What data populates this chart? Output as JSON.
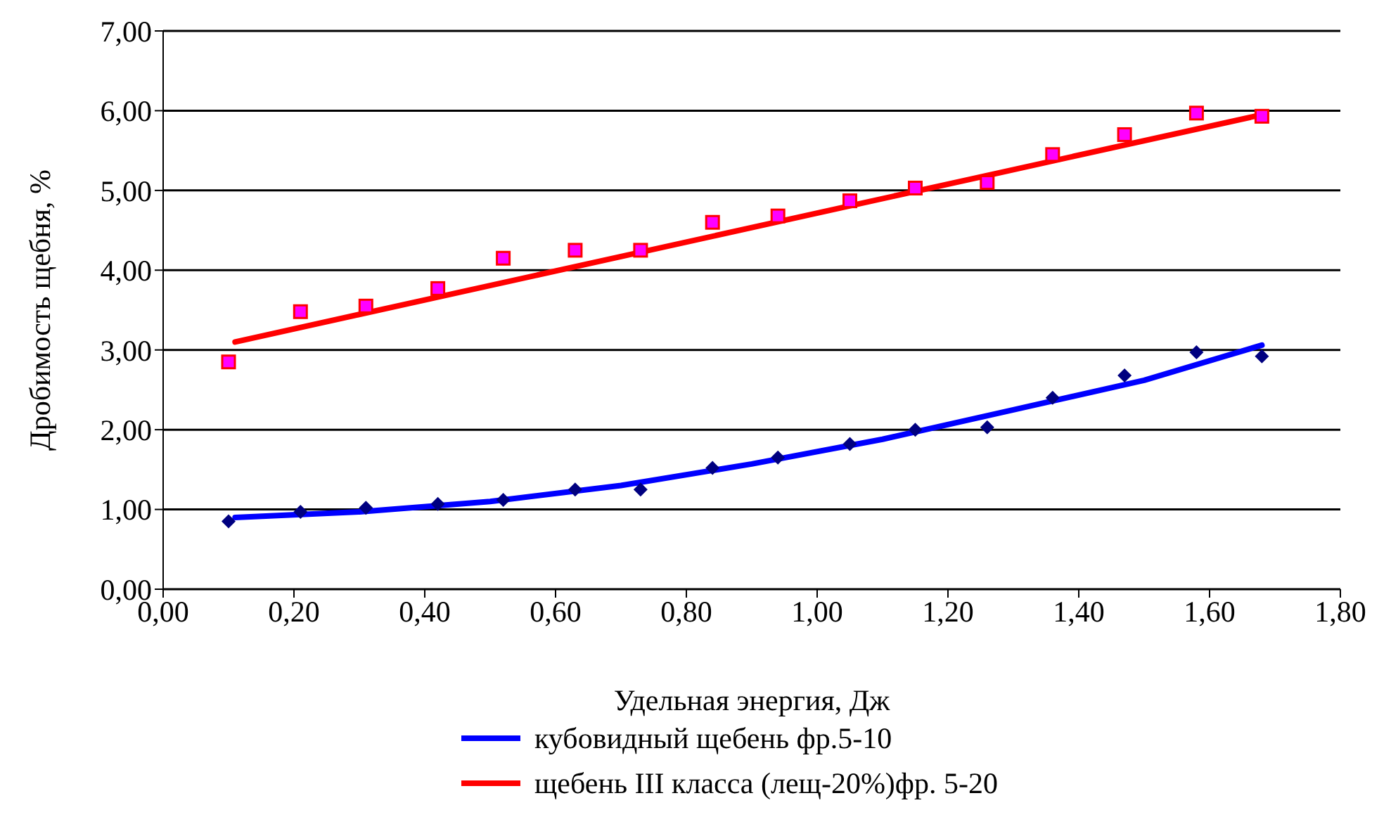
{
  "chart_data": {
    "type": "scatter",
    "xlabel": "Удельная энергия, Дж",
    "ylabel": "Дробимость щебня, %",
    "x": [
      0.1,
      0.21,
      0.31,
      0.42,
      0.52,
      0.63,
      0.73,
      0.84,
      0.94,
      1.05,
      1.15,
      1.26,
      1.36,
      1.47,
      1.58,
      1.68
    ],
    "series": [
      {
        "color": "#000080",
        "marker": "diamond",
        "values": [
          0.85,
          0.97,
          1.02,
          1.07,
          1.12,
          1.25,
          1.25,
          1.52,
          1.65,
          1.82,
          2.0,
          2.03,
          2.4,
          2.68,
          2.97,
          2.92
        ]
      },
      {
        "color": "#ff00ff",
        "marker": "square",
        "values": [
          2.85,
          3.48,
          3.55,
          3.77,
          4.15,
          4.25,
          4.25,
          4.6,
          4.68,
          4.87,
          5.03,
          5.1,
          5.45,
          5.7,
          5.97,
          5.93
        ]
      },
      {
        "type": "line",
        "name": "кубовидный щебень фр.5-10",
        "color": "#0000ff",
        "marker": "none",
        "x": [
          0.11,
          0.3,
          0.5,
          0.7,
          0.9,
          1.1,
          1.3,
          1.5,
          1.68
        ],
        "values": [
          0.9,
          0.97,
          1.1,
          1.3,
          1.57,
          1.88,
          2.25,
          2.62,
          3.06
        ]
      },
      {
        "type": "line",
        "name": "щебень III класса (лещ-20%)фр. 5-20",
        "color": "#ff0000",
        "marker": "none",
        "x": [
          0.11,
          1.68
        ],
        "values": [
          3.1,
          5.95
        ]
      }
    ],
    "xlim": [
      0,
      1.8
    ],
    "xticks": [
      {
        "value": 0,
        "label": "0,00"
      },
      {
        "value": 0.2,
        "label": "0,20"
      },
      {
        "value": 0.4,
        "label": "0,40"
      },
      {
        "value": 0.6,
        "label": "0,60"
      },
      {
        "value": 0.8,
        "label": "0,80"
      },
      {
        "value": 1.0,
        "label": "1,00"
      },
      {
        "value": 1.2,
        "label": "1,20"
      },
      {
        "value": 1.4,
        "label": "1,40"
      },
      {
        "value": 1.6,
        "label": "1,60"
      },
      {
        "value": 1.8,
        "label": "1,80"
      }
    ],
    "ylim": [
      0,
      7
    ],
    "yticks": [
      {
        "value": 0,
        "label": "0,00"
      },
      {
        "value": 1,
        "label": "1,00"
      },
      {
        "value": 2,
        "label": "2,00"
      },
      {
        "value": 3,
        "label": "3,00"
      },
      {
        "value": 4,
        "label": "4,00"
      },
      {
        "value": 5,
        "label": "5,00"
      },
      {
        "value": 6,
        "label": "6,00"
      },
      {
        "value": 7,
        "label": "7,00"
      }
    ],
    "grid": "y",
    "legend": "bottom",
    "line_style": "solid"
  }
}
